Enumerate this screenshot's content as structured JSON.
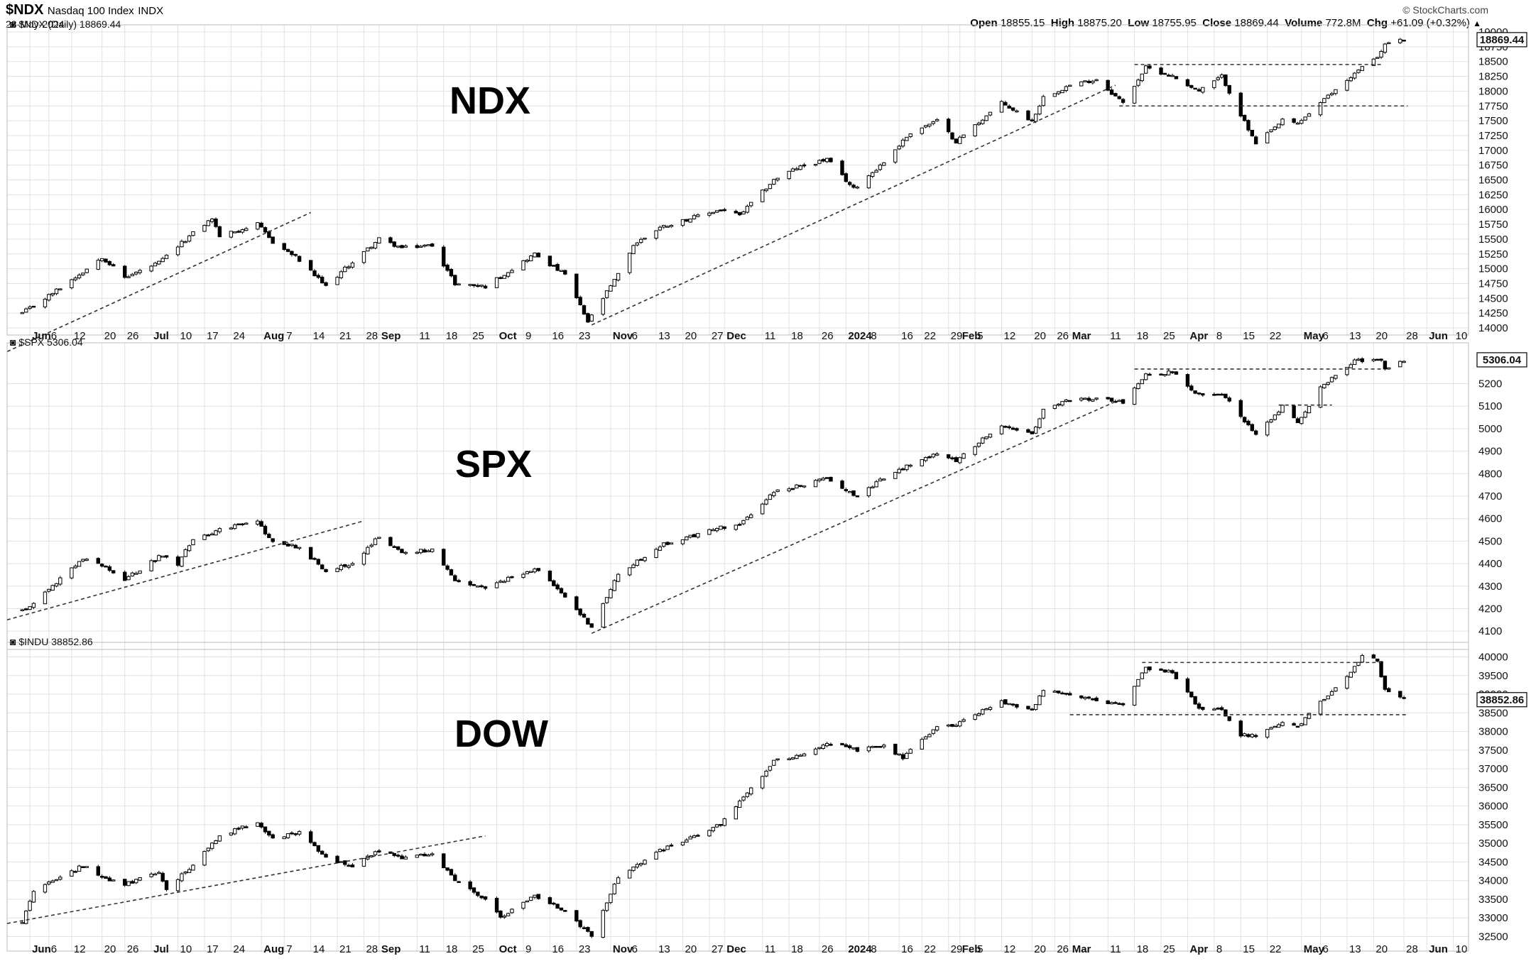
{
  "header": {
    "symbol": "$NDX",
    "index_name": "Nasdaq 100 Index",
    "exchange": "INDX",
    "date": "28-May-2024",
    "credit": "© StockCharts.com",
    "open_label": "Open",
    "open": "18855.15",
    "high_label": "High",
    "high": "18875.20",
    "low_label": "Low",
    "low": "18755.95",
    "close_label": "Close",
    "close": "18869.44",
    "volume_label": "Volume",
    "volume": "772.8M",
    "chg_label": "Chg",
    "chg": "+61.09 (+0.32%)",
    "chg_icon": "up-triangle-icon"
  },
  "x_axis": {
    "labels": [
      "Jun",
      "6",
      "12",
      "20",
      "26",
      "Jul",
      "10",
      "17",
      "24",
      "Aug",
      "7",
      "14",
      "21",
      "28",
      "Sep",
      "11",
      "18",
      "25",
      "Oct",
      "9",
      "16",
      "23",
      "Nov",
      "6",
      "13",
      "20",
      "27",
      "Dec",
      "11",
      "18",
      "26",
      "2024",
      "8",
      "16",
      "22",
      "29",
      "Feb",
      "5",
      "12",
      "20",
      "26",
      "Mar",
      "11",
      "18",
      "25",
      "Apr",
      "8",
      "15",
      "22",
      "May",
      "6",
      "13",
      "20",
      "28",
      "Jun",
      "10"
    ],
    "bold": [
      "Jun",
      "Jul",
      "Aug",
      "Sep",
      "Oct",
      "Nov",
      "Dec",
      "2024",
      "Feb",
      "Mar",
      "Apr",
      "May"
    ]
  },
  "colors": {
    "grid": "#e1e1e1",
    "candle": "#000000",
    "trend": "#333333"
  },
  "chart_data": [
    {
      "type": "candlestick",
      "title": "$NDX (Daily) 18869.44",
      "overlay_label": "NDX",
      "last_value": "18869.44",
      "ylim": [
        14000,
        19000
      ],
      "yticks": [
        14000,
        14250,
        14500,
        14750,
        15000,
        15250,
        15500,
        15750,
        16000,
        16250,
        16500,
        16750,
        17000,
        17250,
        17500,
        17750,
        18000,
        18250,
        18500,
        18750,
        19000
      ],
      "anchors": [
        [
          "2023-05-30",
          14250
        ],
        [
          "2023-06-05",
          14500
        ],
        [
          "2023-06-15",
          14950
        ],
        [
          "2023-06-20",
          15200
        ],
        [
          "2023-06-26",
          14850
        ],
        [
          "2023-07-05",
          15100
        ],
        [
          "2023-07-14",
          15600
        ],
        [
          "2023-07-19",
          15850
        ],
        [
          "2023-07-21",
          15550
        ],
        [
          "2023-07-31",
          15750
        ],
        [
          "2023-08-04",
          15450
        ],
        [
          "2023-08-10",
          15200
        ],
        [
          "2023-08-18",
          14700
        ],
        [
          "2023-08-23",
          15000
        ],
        [
          "2023-09-01",
          15500
        ],
        [
          "2023-09-07",
          15350
        ],
        [
          "2023-09-15",
          15400
        ],
        [
          "2023-09-21",
          14750
        ],
        [
          "2023-09-29",
          14700
        ],
        [
          "2023-10-12",
          15250
        ],
        [
          "2023-10-20",
          14900
        ],
        [
          "2023-10-26",
          14100
        ],
        [
          "2023-11-03",
          14900
        ],
        [
          "2023-11-07",
          15400
        ],
        [
          "2023-11-14",
          15700
        ],
        [
          "2023-11-30",
          16000
        ],
        [
          "2023-12-05",
          15900
        ],
        [
          "2023-12-14",
          16500
        ],
        [
          "2023-12-20",
          16700
        ],
        [
          "2023-12-28",
          16850
        ],
        [
          "2024-01-04",
          16350
        ],
        [
          "2024-01-12",
          16800
        ],
        [
          "2024-01-19",
          17300
        ],
        [
          "2024-01-26",
          17500
        ],
        [
          "2024-01-31",
          17150
        ],
        [
          "2024-02-12",
          17800
        ],
        [
          "2024-02-20",
          17500
        ],
        [
          "2024-02-23",
          17900
        ],
        [
          "2024-03-01",
          18100
        ],
        [
          "2024-03-08",
          18200
        ],
        [
          "2024-03-15",
          17800
        ],
        [
          "2024-03-21",
          18400
        ],
        [
          "2024-03-28",
          18250
        ],
        [
          "2024-04-04",
          18000
        ],
        [
          "2024-04-10",
          18250
        ],
        [
          "2024-04-15",
          17600
        ],
        [
          "2024-04-19",
          17100
        ],
        [
          "2024-04-26",
          17500
        ],
        [
          "2024-04-30",
          17450
        ],
        [
          "2024-05-06",
          17800
        ],
        [
          "2024-05-15",
          18300
        ],
        [
          "2024-05-22",
          18650
        ],
        [
          "2024-05-23",
          18800
        ],
        [
          "2024-05-28",
          18869
        ]
      ],
      "lines": [
        {
          "from": [
            "2023-05-26",
            13600
          ],
          "to": [
            "2023-08-14",
            15950
          ],
          "style": "dashed"
        },
        {
          "from": [
            "2023-10-27",
            14050
          ],
          "to": [
            "2024-03-13",
            18100
          ],
          "style": "dashed"
        },
        {
          "from": [
            "2024-03-18",
            18450
          ],
          "to": [
            "2024-05-22",
            18450
          ],
          "style": "dashed"
        },
        {
          "from": [
            "2024-03-14",
            17750
          ],
          "to": [
            "2024-05-29",
            17750
          ],
          "style": "dashed"
        }
      ]
    },
    {
      "type": "candlestick",
      "title": "$SPX 5306.04",
      "overlay_label": "SPX",
      "last_value": "5306.04",
      "ylim": [
        4050,
        5350
      ],
      "yticks": [
        4100,
        4200,
        4300,
        4400,
        4500,
        4600,
        4700,
        4800,
        4900,
        5000,
        5100,
        5200
      ],
      "anchors": [
        [
          "2023-05-30",
          4190
        ],
        [
          "2023-06-05",
          4270
        ],
        [
          "2023-06-15",
          4420
        ],
        [
          "2023-06-20",
          4390
        ],
        [
          "2023-06-26",
          4330
        ],
        [
          "2023-07-06",
          4440
        ],
        [
          "2023-07-10",
          4400
        ],
        [
          "2023-07-14",
          4510
        ],
        [
          "2023-07-21",
          4550
        ],
        [
          "2023-07-31",
          4590
        ],
        [
          "2023-08-03",
          4510
        ],
        [
          "2023-08-11",
          4470
        ],
        [
          "2023-08-18",
          4370
        ],
        [
          "2023-08-25",
          4400
        ],
        [
          "2023-09-01",
          4520
        ],
        [
          "2023-09-07",
          4450
        ],
        [
          "2023-09-15",
          4460
        ],
        [
          "2023-09-21",
          4320
        ],
        [
          "2023-09-29",
          4290
        ],
        [
          "2023-10-12",
          4380
        ],
        [
          "2023-10-20",
          4250
        ],
        [
          "2023-10-27",
          4120
        ],
        [
          "2023-11-03",
          4350
        ],
        [
          "2023-11-14",
          4480
        ],
        [
          "2023-11-30",
          4560
        ],
        [
          "2023-12-05",
          4570
        ],
        [
          "2023-12-14",
          4720
        ],
        [
          "2023-12-22",
          4750
        ],
        [
          "2023-12-28",
          4780
        ],
        [
          "2024-01-05",
          4700
        ],
        [
          "2024-01-12",
          4780
        ],
        [
          "2024-01-19",
          4840
        ],
        [
          "2024-01-26",
          4890
        ],
        [
          "2024-01-31",
          4860
        ],
        [
          "2024-02-12",
          5020
        ],
        [
          "2024-02-20",
          4970
        ],
        [
          "2024-02-23",
          5080
        ],
        [
          "2024-03-01",
          5130
        ],
        [
          "2024-03-08",
          5130
        ],
        [
          "2024-03-15",
          5120
        ],
        [
          "2024-03-21",
          5240
        ],
        [
          "2024-03-28",
          5250
        ],
        [
          "2024-04-04",
          5150
        ],
        [
          "2024-04-10",
          5160
        ],
        [
          "2024-04-15",
          5060
        ],
        [
          "2024-04-19",
          4970
        ],
        [
          "2024-04-26",
          5100
        ],
        [
          "2024-04-30",
          5030
        ],
        [
          "2024-05-06",
          5180
        ],
        [
          "2024-05-15",
          5300
        ],
        [
          "2024-05-22",
          5310
        ],
        [
          "2024-05-23",
          5270
        ],
        [
          "2024-05-28",
          5306
        ]
      ],
      "lines": [
        {
          "from": [
            "2023-05-26",
            4150
          ],
          "to": [
            "2023-08-28",
            4590
          ],
          "style": "dashed"
        },
        {
          "from": [
            "2023-10-27",
            4090
          ],
          "to": [
            "2024-03-13",
            5120
          ],
          "style": "dashed"
        },
        {
          "from": [
            "2024-03-18",
            5265
          ],
          "to": [
            "2024-05-22",
            5265
          ],
          "style": "dashed"
        },
        {
          "from": [
            "2024-04-25",
            5105
          ],
          "to": [
            "2024-05-09",
            5105
          ],
          "style": "dashed"
        }
      ]
    },
    {
      "type": "candlestick",
      "title": "$INDU 38852.86",
      "overlay_label": "DOW",
      "last_value": "38852.86",
      "ylim": [
        32300,
        40200
      ],
      "yticks": [
        32500,
        33000,
        33500,
        34000,
        34500,
        35000,
        35500,
        36000,
        36500,
        37000,
        37500,
        38000,
        38500,
        39000,
        39500,
        40000
      ],
      "anchors": [
        [
          "2023-05-30",
          32900
        ],
        [
          "2023-06-02",
          33700
        ],
        [
          "2023-06-15",
          34400
        ],
        [
          "2023-06-20",
          34100
        ],
        [
          "2023-06-26",
          33900
        ],
        [
          "2023-07-05",
          34200
        ],
        [
          "2023-07-07",
          33800
        ],
        [
          "2023-07-14",
          34400
        ],
        [
          "2023-07-21",
          35200
        ],
        [
          "2023-07-31",
          35600
        ],
        [
          "2023-08-04",
          35100
        ],
        [
          "2023-08-11",
          35300
        ],
        [
          "2023-08-18",
          34600
        ],
        [
          "2023-08-25",
          34400
        ],
        [
          "2023-09-01",
          34800
        ],
        [
          "2023-09-07",
          34600
        ],
        [
          "2023-09-15",
          34700
        ],
        [
          "2023-09-21",
          34000
        ],
        [
          "2023-09-29",
          33500
        ],
        [
          "2023-10-03",
          33000
        ],
        [
          "2023-10-12",
          33600
        ],
        [
          "2023-10-20",
          33200
        ],
        [
          "2023-10-27",
          32500
        ],
        [
          "2023-11-03",
          34100
        ],
        [
          "2023-11-14",
          34800
        ],
        [
          "2023-11-30",
          35500
        ],
        [
          "2023-12-05",
          36100
        ],
        [
          "2023-12-14",
          37200
        ],
        [
          "2023-12-22",
          37400
        ],
        [
          "2023-12-28",
          37700
        ],
        [
          "2024-01-05",
          37500
        ],
        [
          "2024-01-12",
          37600
        ],
        [
          "2024-01-17",
          37300
        ],
        [
          "2024-01-26",
          38100
        ],
        [
          "2024-01-31",
          38200
        ],
        [
          "2024-02-12",
          38800
        ],
        [
          "2024-02-20",
          38600
        ],
        [
          "2024-02-23",
          39100
        ],
        [
          "2024-03-01",
          39000
        ],
        [
          "2024-03-08",
          38800
        ],
        [
          "2024-03-15",
          38700
        ],
        [
          "2024-03-21",
          39700
        ],
        [
          "2024-03-28",
          39600
        ],
        [
          "2024-04-04",
          38600
        ],
        [
          "2024-04-10",
          38600
        ],
        [
          "2024-04-15",
          37900
        ],
        [
          "2024-04-19",
          37900
        ],
        [
          "2024-04-26",
          38200
        ],
        [
          "2024-04-30",
          38100
        ],
        [
          "2024-05-06",
          38800
        ],
        [
          "2024-05-15",
          39700
        ],
        [
          "2024-05-17",
          40000
        ],
        [
          "2024-05-21",
          39900
        ],
        [
          "2024-05-23",
          39100
        ],
        [
          "2024-05-28",
          38853
        ]
      ],
      "lines": [
        {
          "from": [
            "2023-05-26",
            32850
          ],
          "to": [
            "2023-09-29",
            35200
          ],
          "style": "dashed"
        },
        {
          "from": [
            "2024-03-20",
            39850
          ],
          "to": [
            "2024-05-22",
            39850
          ],
          "style": "dashed"
        },
        {
          "from": [
            "2024-03-01",
            38450
          ],
          "to": [
            "2024-05-29",
            38450
          ],
          "style": "dashed"
        }
      ]
    }
  ]
}
